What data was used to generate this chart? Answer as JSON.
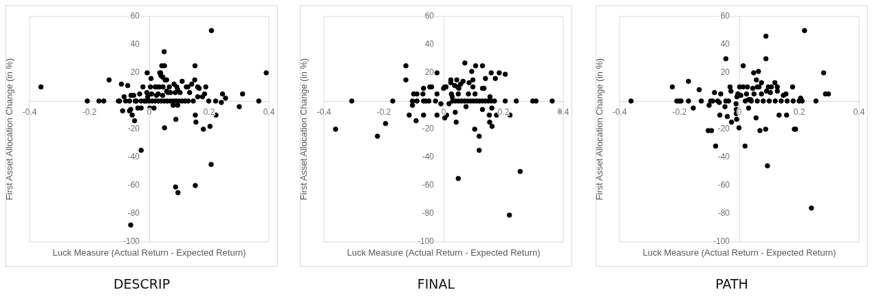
{
  "chart_data": [
    {
      "type": "scatter",
      "title": "DESCRIP",
      "xlabel": "Luck Measure (Actual Return - Expected Return)",
      "ylabel": "First Asset Allocation Change (in %)",
      "xlim": [
        -0.4,
        0.4
      ],
      "xticks": [
        -0.4,
        -0.2,
        0,
        0.2,
        0.4
      ],
      "ylim": [
        -100,
        60
      ],
      "yticks": [
        -100,
        -80,
        -60,
        -40,
        -20,
        20,
        40,
        60
      ],
      "marker": "circle",
      "grid": false,
      "legend": false,
      "series": [
        {
          "color": "#000000",
          "x": [
            -0.362,
            -0.207,
            -0.168,
            -0.152,
            -0.134,
            -0.103,
            -0.099,
            -0.093,
            -0.089,
            -0.084,
            -0.079,
            -0.072,
            -0.066,
            -0.066,
            -0.062,
            -0.062,
            -0.057,
            -0.061,
            -0.052,
            -0.049,
            -0.047,
            -0.043,
            -0.038,
            -0.032,
            -0.027,
            -0.027,
            -0.027,
            -0.021,
            -0.016,
            -0.008,
            -0.007,
            0.002,
            0.006,
            0.004,
            0.008,
            0.016,
            0.02,
            0.024,
            0.026,
            0.034,
            0.046,
            0.035,
            0.038,
            0.039,
            0.042,
            0.051,
            0.045,
            0.05,
            0.051,
            0.053,
            0.058,
            0.058,
            0.063,
            0.067,
            0.071,
            0.08,
            0.083,
            0.087,
            0.089,
            0.088,
            0.092,
            0.095,
            0.095,
            0.096,
            0.103,
            0.11,
            0.124,
            0.129,
            0.135,
            0.142,
            0.147,
            0.152,
            0.153,
            0.154,
            0.154,
            0.156,
            0.162,
            0.162,
            0.167,
            0.178,
            0.181,
            0.185,
            0.189,
            0.199,
            0.203,
            0.207,
            0.208,
            0.222,
            0.223,
            0.241,
            0.245,
            0.255,
            0.301,
            0.312,
            0.366,
            0.391,
            -0.01,
            0,
            0.01,
            0.02,
            0.03,
            0.04,
            0.05,
            0.06,
            0.07,
            0.08,
            0.09,
            0.1,
            0.11,
            0.12,
            0.13,
            -0.005,
            0.03,
            0.045
          ],
          "values": [
            10,
            0,
            0,
            0,
            15,
            0,
            0,
            12,
            -7,
            3,
            0,
            11,
            0,
            -7,
            -6,
            -88,
            -10,
            4,
            4,
            -14,
            0,
            0,
            -5,
            5,
            -35,
            -5,
            0,
            10,
            0,
            6,
            20,
            -5,
            16,
            10,
            5,
            -5,
            10,
            4,
            10,
            10,
            10,
            20,
            20,
            18,
            25,
            25,
            17,
            35,
            -19,
            15,
            15,
            7,
            6,
            10,
            6,
            -3,
            12,
            6,
            -13,
            -61,
            10,
            8,
            -3,
            -65,
            6,
            14,
            10,
            10,
            6,
            12,
            0,
            15,
            25,
            -10,
            -60,
            -15,
            3,
            10,
            9,
            3,
            -20,
            5,
            10,
            0,
            -18,
            -45,
            50,
            0,
            -10,
            -1,
            5,
            2,
            -4,
            5,
            0,
            20,
            0,
            0,
            0,
            0,
            0,
            0,
            0,
            0,
            0,
            0,
            0,
            0,
            0,
            0,
            0,
            3,
            5,
            4
          ]
        }
      ]
    },
    {
      "type": "scatter",
      "title": "FINAL",
      "xlabel": "Luck Measure (Actual Return - Expected Return)",
      "ylabel": "First Asset Allocation Change (in %)",
      "xlim": [
        -0.4,
        0.4
      ],
      "xticks": [
        -0.4,
        -0.2,
        0,
        0.2,
        0.4
      ],
      "ylim": [
        -100,
        60
      ],
      "yticks": [
        -100,
        -80,
        -60,
        -40,
        -20,
        20,
        40,
        60
      ],
      "marker": "circle",
      "grid": false,
      "legend": false,
      "series": [
        {
          "color": "#000000",
          "x": [
            -0.361,
            -0.307,
            -0.221,
            -0.194,
            -0.17,
            -0.126,
            -0.126,
            -0.115,
            -0.104,
            -0.104,
            -0.1,
            -0.089,
            -0.092,
            -0.089,
            -0.069,
            -0.067,
            -0.067,
            -0.067,
            -0.059,
            -0.049,
            -0.046,
            -0.04,
            -0.027,
            -0.022,
            -0.022,
            -0.022,
            -0.009,
            0,
            0.004,
            0.008,
            0.004,
            0.01,
            0.018,
            0.024,
            0.024,
            0.026,
            0.029,
            0.037,
            0.039,
            0.042,
            0.044,
            0.047,
            0.049,
            0.051,
            0.049,
            0.057,
            0.065,
            0.071,
            0.075,
            0.083,
            0.085,
            0.094,
            0.098,
            0.098,
            0.104,
            0.107,
            0.105,
            0.119,
            0.119,
            0.13,
            0.13,
            0.135,
            0.13,
            0.14,
            0.153,
            0.154,
            0.155,
            0.159,
            0.161,
            0.162,
            0.173,
            0.177,
            0.186,
            0.206,
            0.206,
            0.22,
            0.222,
            0.243,
            0.256,
            0.298,
            0.309,
            0.363,
            0.388,
            0.03,
            0.04,
            0.05,
            0.06,
            0.07,
            0.08,
            0.09,
            0.1,
            0.11,
            0.12,
            0.13,
            0.14,
            0.15,
            0.16,
            0.17
          ],
          "values": [
            -20,
            0,
            -25,
            -16,
            0,
            25,
            15,
            -10,
            -3,
            0,
            5,
            5,
            -14,
            0,
            5,
            9,
            -10,
            0,
            0,
            0,
            10,
            10,
            0,
            20,
            5,
            -10,
            -2,
            9,
            10,
            10,
            -12,
            -10,
            -2,
            15,
            13,
            5,
            3,
            11,
            -8,
            -15,
            15,
            10,
            5,
            9,
            -55,
            12,
            14,
            27,
            -4,
            5,
            13,
            21,
            15,
            10,
            -20,
            25,
            5,
            -25,
            -35,
            -6,
            9,
            9,
            25,
            16,
            -10,
            -15,
            3,
            20,
            -5,
            -18,
            16,
            -10,
            20,
            19,
            0,
            -81,
            -10,
            0,
            -50,
            0,
            0,
            0,
            -8,
            0,
            0,
            0,
            0,
            0,
            0,
            0,
            0,
            0,
            0,
            0,
            0,
            0,
            0,
            0
          ]
        }
      ]
    },
    {
      "type": "scatter",
      "title": "PATH",
      "xlabel": "Luck Measure (Actual Return - Expected Return)",
      "ylabel": "First Asset Allocation Change (in %)",
      "xlim": [
        -0.4,
        0.4
      ],
      "xticks": [
        -0.4,
        -0.2,
        0,
        0.2,
        0.4
      ],
      "ylim": [
        -100,
        60
      ],
      "yticks": [
        -100,
        -80,
        -60,
        -40,
        -20,
        20,
        40,
        60
      ],
      "marker": "circle",
      "grid": false,
      "legend": false,
      "series": [
        {
          "color": "#000000",
          "x": [
            -0.362,
            -0.224,
            -0.209,
            -0.201,
            -0.195,
            -0.17,
            -0.17,
            -0.154,
            -0.134,
            -0.127,
            -0.104,
            -0.093,
            -0.101,
            -0.096,
            -0.089,
            -0.083,
            -0.079,
            -0.072,
            -0.067,
            -0.065,
            -0.062,
            -0.048,
            -0.045,
            -0.036,
            -0.045,
            -0.04,
            -0.031,
            -0.028,
            -0.026,
            -0.011,
            -0.01,
            -0.01,
            -0.009,
            -0.008,
            -0.005,
            -0.001,
            0.001,
            0.013,
            0.027,
            0.005,
            0.013,
            0.019,
            0.024,
            0.031,
            0.031,
            0.038,
            0.045,
            0.048,
            0.049,
            0.056,
            0.057,
            0.06,
            0.066,
            0.064,
            0.069,
            0.074,
            0.074,
            0.088,
            0.089,
            0.089,
            0.091,
            0.094,
            0.097,
            0.107,
            0.104,
            0.119,
            0.127,
            0.127,
            0.133,
            0.147,
            0.156,
            0.158,
            0.178,
            0.184,
            0.188,
            0.205,
            0.218,
            0.241,
            0.256,
            0.282,
            0.288,
            0.298,
            0.02,
            0.04,
            0.06,
            0.08,
            0.1,
            0.12,
            0.14,
            0.16,
            0.18,
            0.2,
            0.21
          ],
          "values": [
            0,
            10,
            0,
            0,
            0,
            14,
            0,
            -5,
            8,
            0,
            -21,
            -21,
            -3,
            0,
            0,
            6,
            -32,
            0,
            -1,
            -10,
            5,
            -4,
            0,
            0,
            30,
            -11,
            10,
            7,
            -15,
            -2,
            -6,
            -9,
            -13,
            3,
            5,
            -19,
            10,
            10,
            10,
            4,
            25,
            -32,
            5,
            -5,
            1,
            1,
            9,
            20,
            5,
            -12,
            15,
            10,
            10,
            21,
            -21,
            13,
            5,
            -20,
            46,
            30,
            7,
            -46,
            10,
            10,
            6,
            13,
            10,
            7,
            -10,
            4,
            5,
            -10,
            10,
            -20,
            -20,
            2,
            50,
            -76,
            0,
            20,
            5,
            5,
            0,
            0,
            0,
            0,
            0,
            0,
            0,
            0,
            0,
            0,
            0
          ]
        }
      ]
    }
  ]
}
